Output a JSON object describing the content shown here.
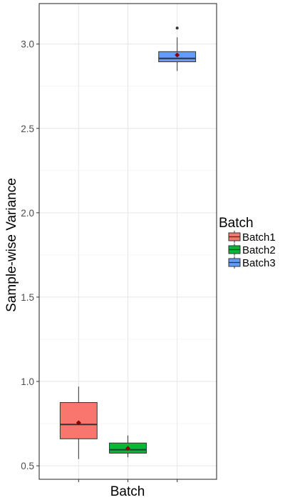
{
  "chart_data": {
    "type": "boxplot",
    "xlabel": "Batch",
    "ylabel": "Sample-wise Variance",
    "ylim": [
      0.42,
      3.24
    ],
    "y_ticks": [
      0.5,
      1.0,
      1.5,
      2.0,
      2.5,
      3.0
    ],
    "y_tick_labels": [
      "0.5",
      "1.0",
      "1.5",
      "2.0",
      "2.5",
      "3.0"
    ],
    "grid": true,
    "legend": {
      "title": "Batch",
      "position": "right",
      "entries": [
        "Batch1",
        "Batch2",
        "Batch3"
      ]
    },
    "categories": [
      "Batch1",
      "Batch2",
      "Batch3"
    ],
    "boxes": [
      {
        "name": "Batch1",
        "color": "#F8766D",
        "min": 0.54,
        "q1": 0.66,
        "median": 0.745,
        "q3": 0.875,
        "max": 0.97,
        "mean": 0.755,
        "outliers": []
      },
      {
        "name": "Batch2",
        "color": "#00BA38",
        "min": 0.55,
        "q1": 0.575,
        "median": 0.595,
        "q3": 0.635,
        "max": 0.68,
        "mean": 0.603,
        "outliers": []
      },
      {
        "name": "Batch3",
        "color": "#619CFF",
        "min": 2.84,
        "q1": 2.895,
        "median": 2.915,
        "q3": 2.955,
        "max": 3.04,
        "mean": 2.935,
        "outliers": [
          3.095
        ]
      }
    ],
    "mean_marker_color": "#8B0000"
  }
}
